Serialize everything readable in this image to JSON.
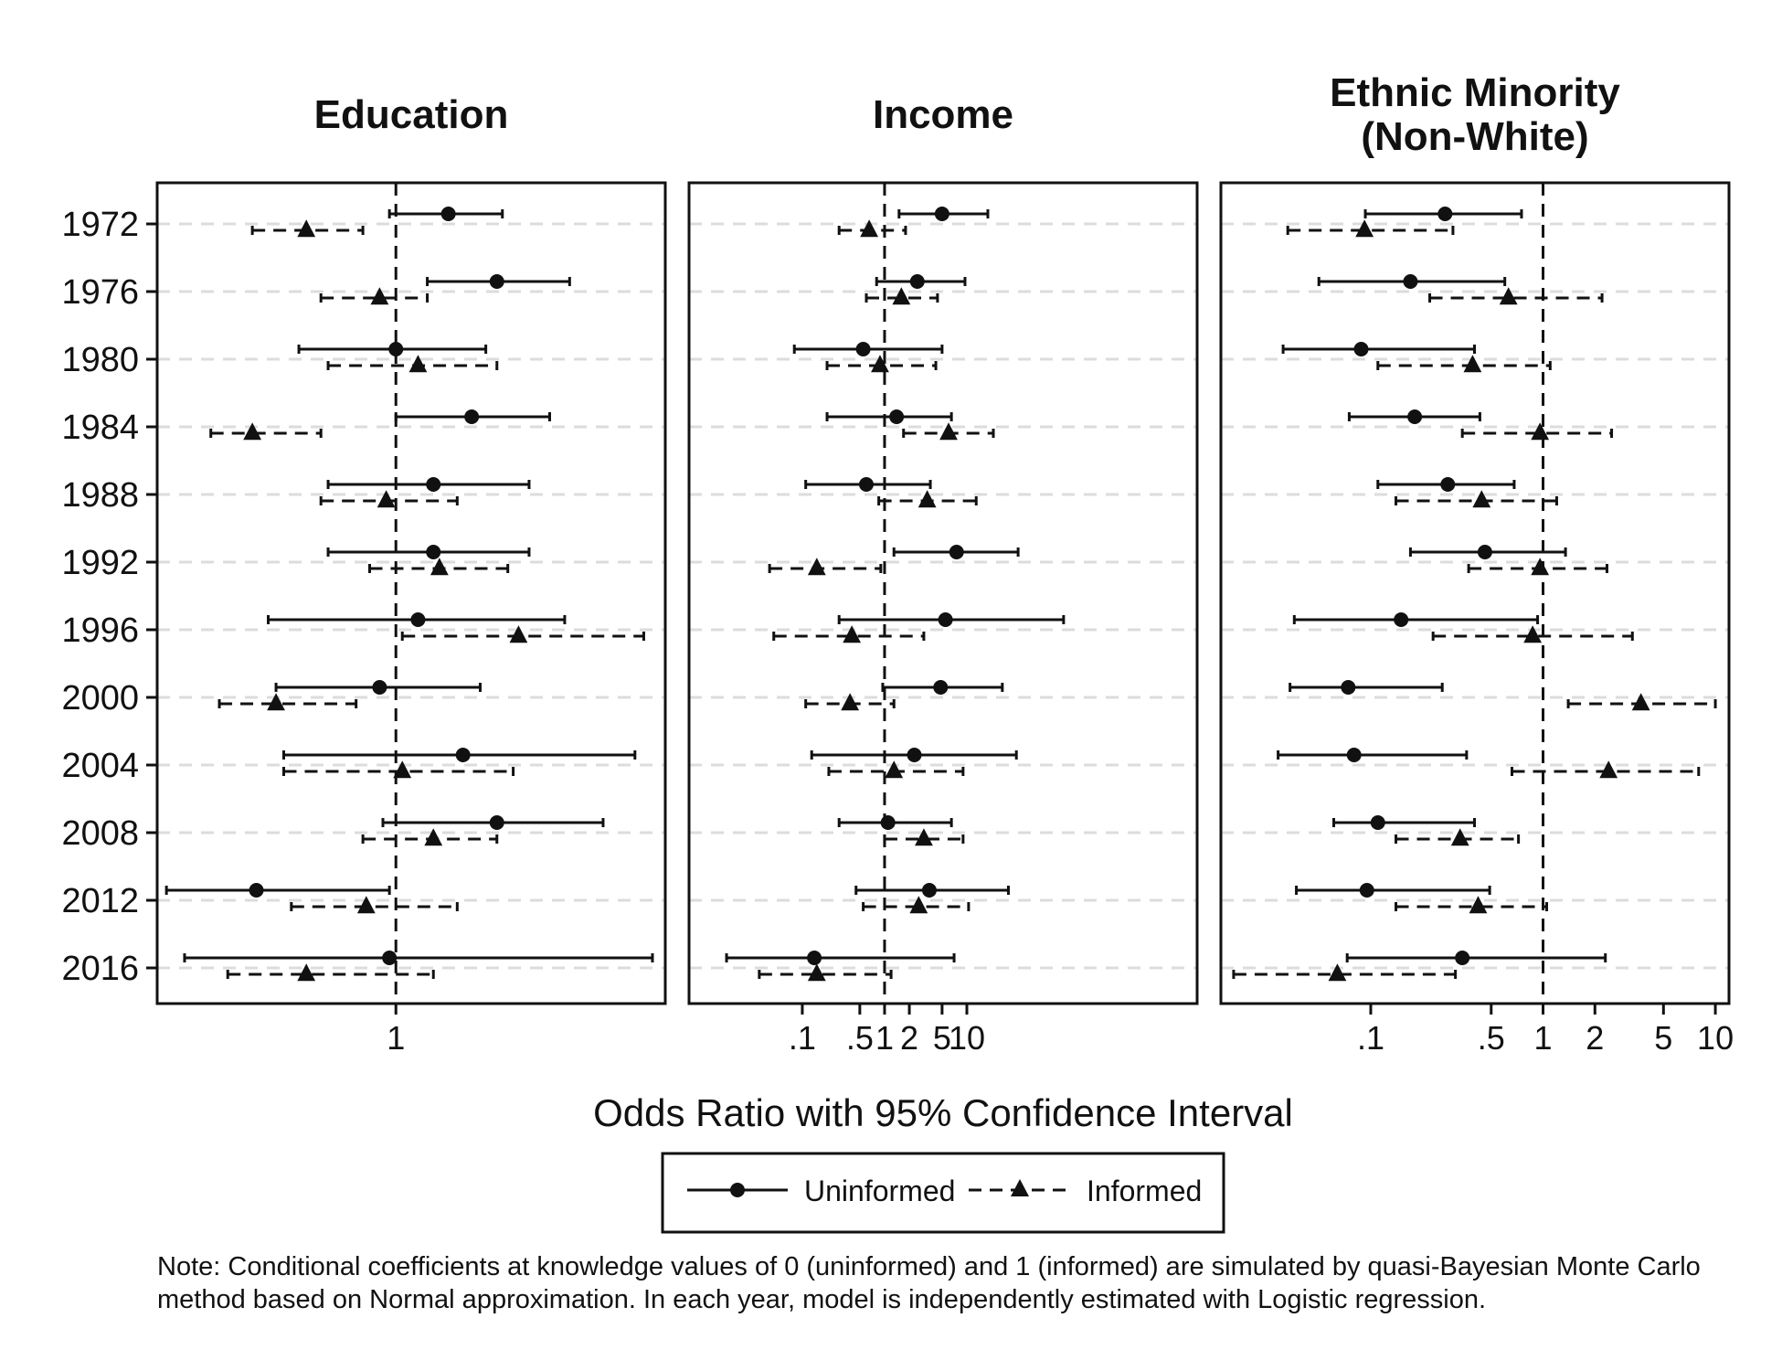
{
  "chart_data": {
    "type": "forest",
    "years": [
      "1972",
      "1976",
      "1980",
      "1984",
      "1988",
      "1992",
      "1996",
      "2000",
      "2004",
      "2008",
      "2012",
      "2016"
    ],
    "xlabel": "Odds Ratio with 95% Confidence Interval",
    "legend": {
      "position": "bottom-center",
      "series": [
        {
          "name": "Uninformed",
          "marker": "circle",
          "line": "solid"
        },
        {
          "name": "Informed",
          "marker": "triangle",
          "line": "dashed"
        }
      ]
    },
    "reference_line": 1,
    "grid": "horizontal-dashed",
    "panels": [
      {
        "title": [
          "Education"
        ],
        "scale": "log",
        "xlim": [
          0.69,
          1.52
        ],
        "ticks": [
          {
            "value": 1,
            "label": "1"
          }
        ],
        "series": {
          "Uninformed": [
            {
              "est": 1.085,
              "lo": 0.99,
              "hi": 1.18
            },
            {
              "est": 1.17,
              "lo": 1.05,
              "hi": 1.31
            },
            {
              "est": 1.0,
              "lo": 0.86,
              "hi": 1.15
            },
            {
              "est": 1.125,
              "lo": 1.0,
              "hi": 1.27
            },
            {
              "est": 1.06,
              "lo": 0.9,
              "hi": 1.23
            },
            {
              "est": 1.06,
              "lo": 0.9,
              "hi": 1.23
            },
            {
              "est": 1.035,
              "lo": 0.82,
              "hi": 1.3
            },
            {
              "est": 0.975,
              "lo": 0.83,
              "hi": 1.14
            },
            {
              "est": 1.11,
              "lo": 0.84,
              "hi": 1.45
            },
            {
              "est": 1.17,
              "lo": 0.98,
              "hi": 1.38
            },
            {
              "est": 0.805,
              "lo": 0.7,
              "hi": 0.99
            },
            {
              "est": 0.99,
              "lo": 0.72,
              "hi": 1.49
            }
          ],
          "Informed": [
            {
              "est": 0.87,
              "lo": 0.8,
              "hi": 0.95
            },
            {
              "est": 0.975,
              "lo": 0.89,
              "hi": 1.05
            },
            {
              "est": 1.035,
              "lo": 0.9,
              "hi": 1.17
            },
            {
              "est": 0.8,
              "lo": 0.75,
              "hi": 0.89
            },
            {
              "est": 0.985,
              "lo": 0.89,
              "hi": 1.1
            },
            {
              "est": 1.07,
              "lo": 0.96,
              "hi": 1.19
            },
            {
              "est": 1.21,
              "lo": 1.01,
              "hi": 1.47
            },
            {
              "est": 0.83,
              "lo": 0.76,
              "hi": 0.94
            },
            {
              "est": 1.01,
              "lo": 0.84,
              "hi": 1.2
            },
            {
              "est": 1.06,
              "lo": 0.95,
              "hi": 1.17
            },
            {
              "est": 0.955,
              "lo": 0.85,
              "hi": 1.1
            },
            {
              "est": 0.87,
              "lo": 0.77,
              "hi": 1.06
            }
          ]
        }
      },
      {
        "title": [
          "Income"
        ],
        "scale": "log",
        "xlim": [
          0.0042,
          6300
        ],
        "ticks": [
          {
            "value": 0.1,
            "label": ".1"
          },
          {
            "value": 0.5,
            "label": ".5"
          },
          {
            "value": 1,
            "label": "1"
          },
          {
            "value": 2,
            "label": "2"
          },
          {
            "value": 5,
            "label": "5"
          },
          {
            "value": 10,
            "label": "10"
          }
        ],
        "series": {
          "Uninformed": [
            {
              "est": 5.0,
              "lo": 1.5,
              "hi": 18
            },
            {
              "est": 2.5,
              "lo": 0.8,
              "hi": 9.5
            },
            {
              "est": 0.55,
              "lo": 0.08,
              "hi": 5.0
            },
            {
              "est": 1.4,
              "lo": 0.2,
              "hi": 6.5
            },
            {
              "est": 0.6,
              "lo": 0.11,
              "hi": 3.6
            },
            {
              "est": 7.5,
              "lo": 1.3,
              "hi": 42
            },
            {
              "est": 5.5,
              "lo": 0.28,
              "hi": 150
            },
            {
              "est": 4.8,
              "lo": 0.95,
              "hi": 27
            },
            {
              "est": 2.3,
              "lo": 0.13,
              "hi": 40
            },
            {
              "est": 1.1,
              "lo": 0.28,
              "hi": 6.5
            },
            {
              "est": 3.5,
              "lo": 0.45,
              "hi": 32
            },
            {
              "est": 0.14,
              "lo": 0.012,
              "hi": 7.0
            }
          ],
          "Informed": [
            {
              "est": 0.65,
              "lo": 0.28,
              "hi": 1.8
            },
            {
              "est": 1.6,
              "lo": 0.6,
              "hi": 4.4
            },
            {
              "est": 0.88,
              "lo": 0.2,
              "hi": 4.2
            },
            {
              "est": 6.0,
              "lo": 1.7,
              "hi": 21
            },
            {
              "est": 3.3,
              "lo": 0.85,
              "hi": 13
            },
            {
              "est": 0.15,
              "lo": 0.04,
              "hi": 0.9
            },
            {
              "est": 0.4,
              "lo": 0.045,
              "hi": 3.0
            },
            {
              "est": 0.38,
              "lo": 0.11,
              "hi": 1.3
            },
            {
              "est": 1.3,
              "lo": 0.21,
              "hi": 9.0
            },
            {
              "est": 3.0,
              "lo": 1.0,
              "hi": 9.0
            },
            {
              "est": 2.6,
              "lo": 0.55,
              "hi": 10.5
            },
            {
              "est": 0.15,
              "lo": 0.03,
              "hi": 1.2
            }
          ]
        }
      },
      {
        "title": [
          "Ethnic Minority",
          "(Non-White)"
        ],
        "scale": "log",
        "xlim": [
          0.0135,
          12
        ],
        "ticks": [
          {
            "value": 0.1,
            "label": ".1"
          },
          {
            "value": 0.5,
            "label": ".5"
          },
          {
            "value": 1,
            "label": "1"
          },
          {
            "value": 2,
            "label": "2"
          },
          {
            "value": 5,
            "label": "5"
          },
          {
            "value": 10,
            "label": "10"
          }
        ],
        "series": {
          "Uninformed": [
            {
              "est": 0.27,
              "lo": 0.093,
              "hi": 0.75
            },
            {
              "est": 0.17,
              "lo": 0.05,
              "hi": 0.6
            },
            {
              "est": 0.088,
              "lo": 0.031,
              "hi": 0.4
            },
            {
              "est": 0.18,
              "lo": 0.075,
              "hi": 0.43
            },
            {
              "est": 0.28,
              "lo": 0.11,
              "hi": 0.68
            },
            {
              "est": 0.46,
              "lo": 0.17,
              "hi": 1.35
            },
            {
              "est": 0.15,
              "lo": 0.036,
              "hi": 0.93
            },
            {
              "est": 0.074,
              "lo": 0.034,
              "hi": 0.26
            },
            {
              "est": 0.08,
              "lo": 0.029,
              "hi": 0.36
            },
            {
              "est": 0.11,
              "lo": 0.061,
              "hi": 0.4
            },
            {
              "est": 0.095,
              "lo": 0.037,
              "hi": 0.49
            },
            {
              "est": 0.34,
              "lo": 0.073,
              "hi": 2.3
            }
          ],
          "Informed": [
            {
              "est": 0.092,
              "lo": 0.033,
              "hi": 0.3
            },
            {
              "est": 0.63,
              "lo": 0.22,
              "hi": 2.2
            },
            {
              "est": 0.39,
              "lo": 0.11,
              "hi": 1.1
            },
            {
              "est": 0.96,
              "lo": 0.34,
              "hi": 2.5
            },
            {
              "est": 0.44,
              "lo": 0.14,
              "hi": 1.2
            },
            {
              "est": 0.96,
              "lo": 0.37,
              "hi": 2.35
            },
            {
              "est": 0.87,
              "lo": 0.23,
              "hi": 3.3
            },
            {
              "est": 3.7,
              "lo": 1.4,
              "hi": 10
            },
            {
              "est": 2.4,
              "lo": 0.66,
              "hi": 8.0
            },
            {
              "est": 0.33,
              "lo": 0.14,
              "hi": 0.72
            },
            {
              "est": 0.42,
              "lo": 0.14,
              "hi": 1.05
            },
            {
              "est": 0.064,
              "lo": 0.016,
              "hi": 0.31
            }
          ]
        }
      }
    ]
  },
  "note": "Note: Conditional coefficients at knowledge values of 0 (uninformed) and 1 (informed) are simulated by quasi-Bayesian Monte Carlo method based on Normal approximation. In each year, model is independently estimated with Logistic regression."
}
